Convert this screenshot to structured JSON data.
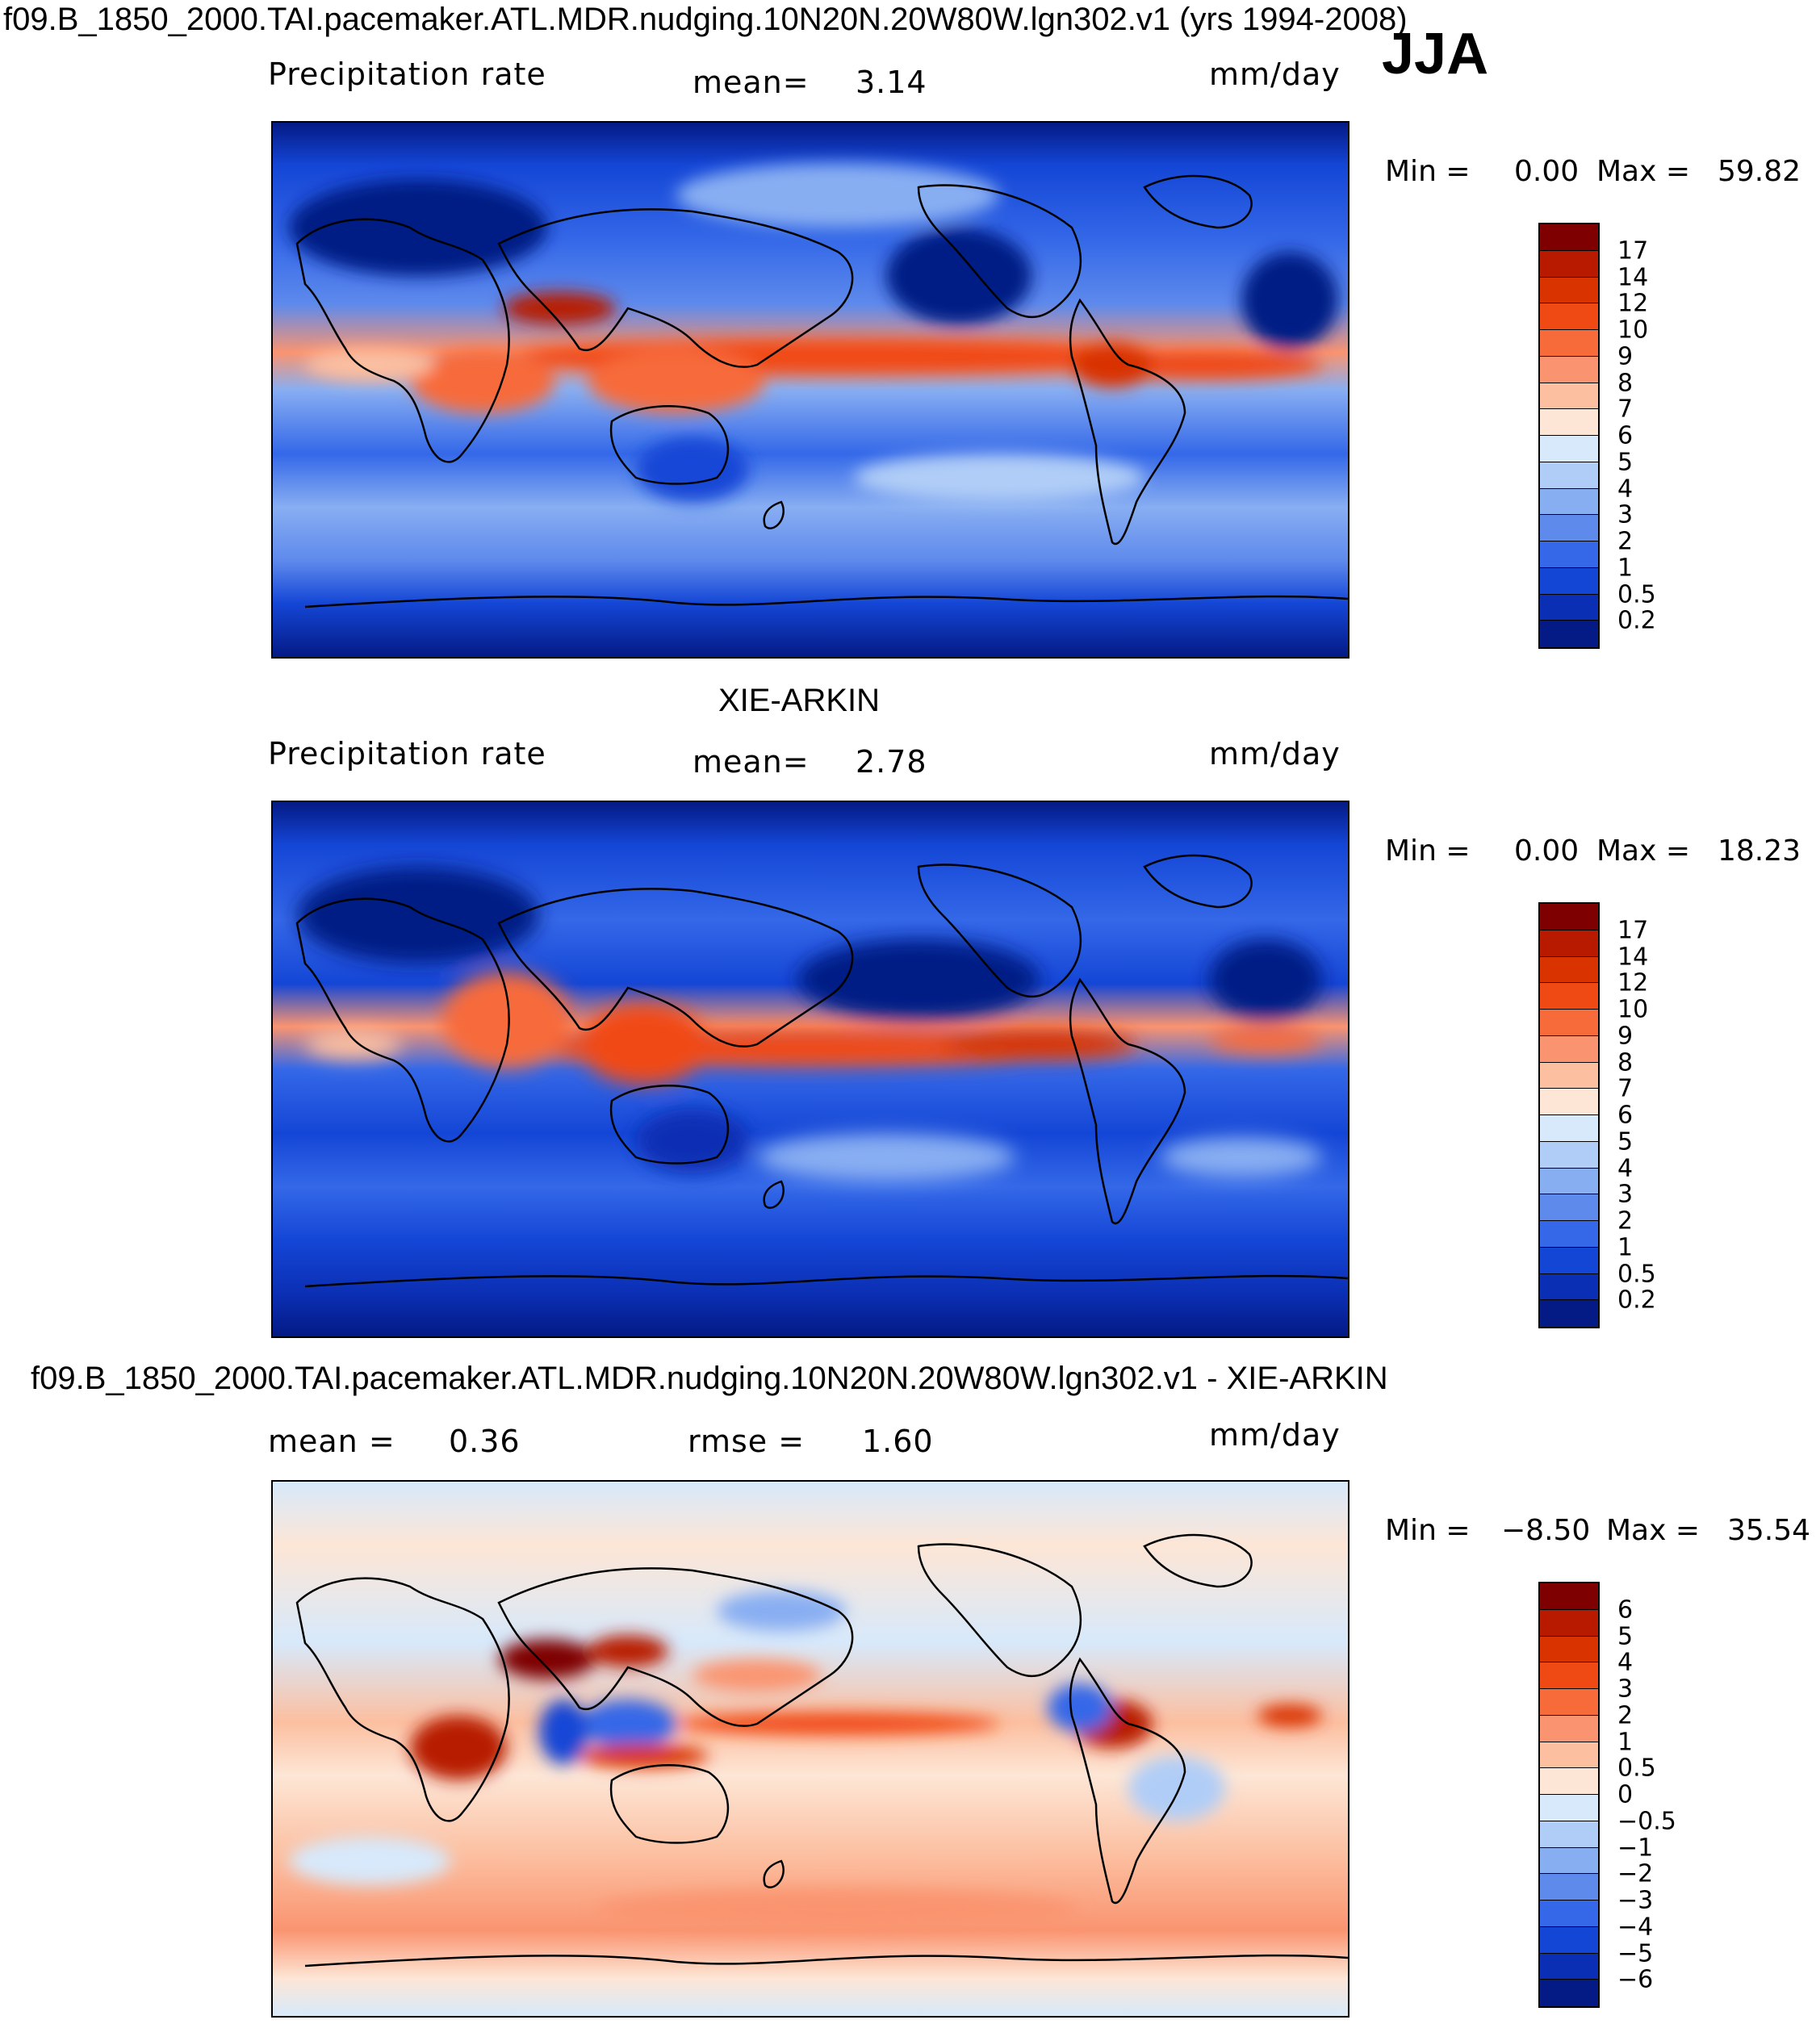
{
  "figure": {
    "title": "f09.B_1850_2000.TAI.pacemaker.ATL.MDR.nudging.10N20N.20W80W.lgn302.v1 (yrs 1994-2008)",
    "season": "JJA"
  },
  "panels": [
    {
      "id": "model",
      "title": "",
      "field_label": "Precipitation rate",
      "stat1_label": "mean=",
      "stat1_value": "3.14",
      "stat2_label": "",
      "stat2_value": "",
      "units": "mm/day",
      "min_label": "Min =",
      "min_value": "0.00",
      "max_label": "Max =",
      "max_value": "59.82",
      "colorbar": {
        "levels": [
          "17",
          "14",
          "12",
          "10",
          "9",
          "8",
          "7",
          "6",
          "5",
          "4",
          "3",
          "2",
          "1",
          "0.5",
          "0.2"
        ],
        "colors": [
          "#7f0000",
          "#b81a00",
          "#d93300",
          "#f04a14",
          "#f76a3a",
          "#fa9470",
          "#fcbfa0",
          "#fde6d6",
          "#d7e9fb",
          "#b0cdf7",
          "#88aef2",
          "#5e8aec",
          "#3468e8",
          "#1446d6",
          "#0b2fb4",
          "#041a85"
        ]
      }
    },
    {
      "id": "obs",
      "title": "XIE-ARKIN",
      "field_label": "Precipitation rate",
      "stat1_label": "mean=",
      "stat1_value": "2.78",
      "stat2_label": "",
      "stat2_value": "",
      "units": "mm/day",
      "min_label": "Min =",
      "min_value": "0.00",
      "max_label": "Max =",
      "max_value": "18.23",
      "colorbar": {
        "levels": [
          "17",
          "14",
          "12",
          "10",
          "9",
          "8",
          "7",
          "6",
          "5",
          "4",
          "3",
          "2",
          "1",
          "0.5",
          "0.2"
        ],
        "colors": [
          "#7f0000",
          "#b81a00",
          "#d93300",
          "#f04a14",
          "#f76a3a",
          "#fa9470",
          "#fcbfa0",
          "#fde6d6",
          "#d7e9fb",
          "#b0cdf7",
          "#88aef2",
          "#5e8aec",
          "#3468e8",
          "#1446d6",
          "#0b2fb4",
          "#041a85"
        ]
      }
    },
    {
      "id": "diff",
      "title": "f09.B_1850_2000.TAI.pacemaker.ATL.MDR.nudging.10N20N.20W80W.lgn302.v1 - XIE-ARKIN",
      "field_label": "",
      "stat1_label": "mean =",
      "stat1_value": "0.36",
      "stat2_label": "rmse =",
      "stat2_value": "1.60",
      "units": "mm/day",
      "min_label": "Min =",
      "min_value": "−8.50",
      "max_label": "Max =",
      "max_value": "35.54",
      "colorbar": {
        "levels": [
          "6",
          "5",
          "4",
          "3",
          "2",
          "1",
          "0.5",
          "0",
          "−0.5",
          "−1",
          "−2",
          "−3",
          "−4",
          "−5",
          "−6"
        ],
        "colors": [
          "#7f0000",
          "#b81a00",
          "#d93300",
          "#f04a14",
          "#f76a3a",
          "#fa9470",
          "#fcbfa0",
          "#fde6d6",
          "#d7e9fb",
          "#b0cdf7",
          "#88aef2",
          "#5e8aec",
          "#3468e8",
          "#1446d6",
          "#0b2fb4",
          "#041a85"
        ]
      }
    }
  ]
}
